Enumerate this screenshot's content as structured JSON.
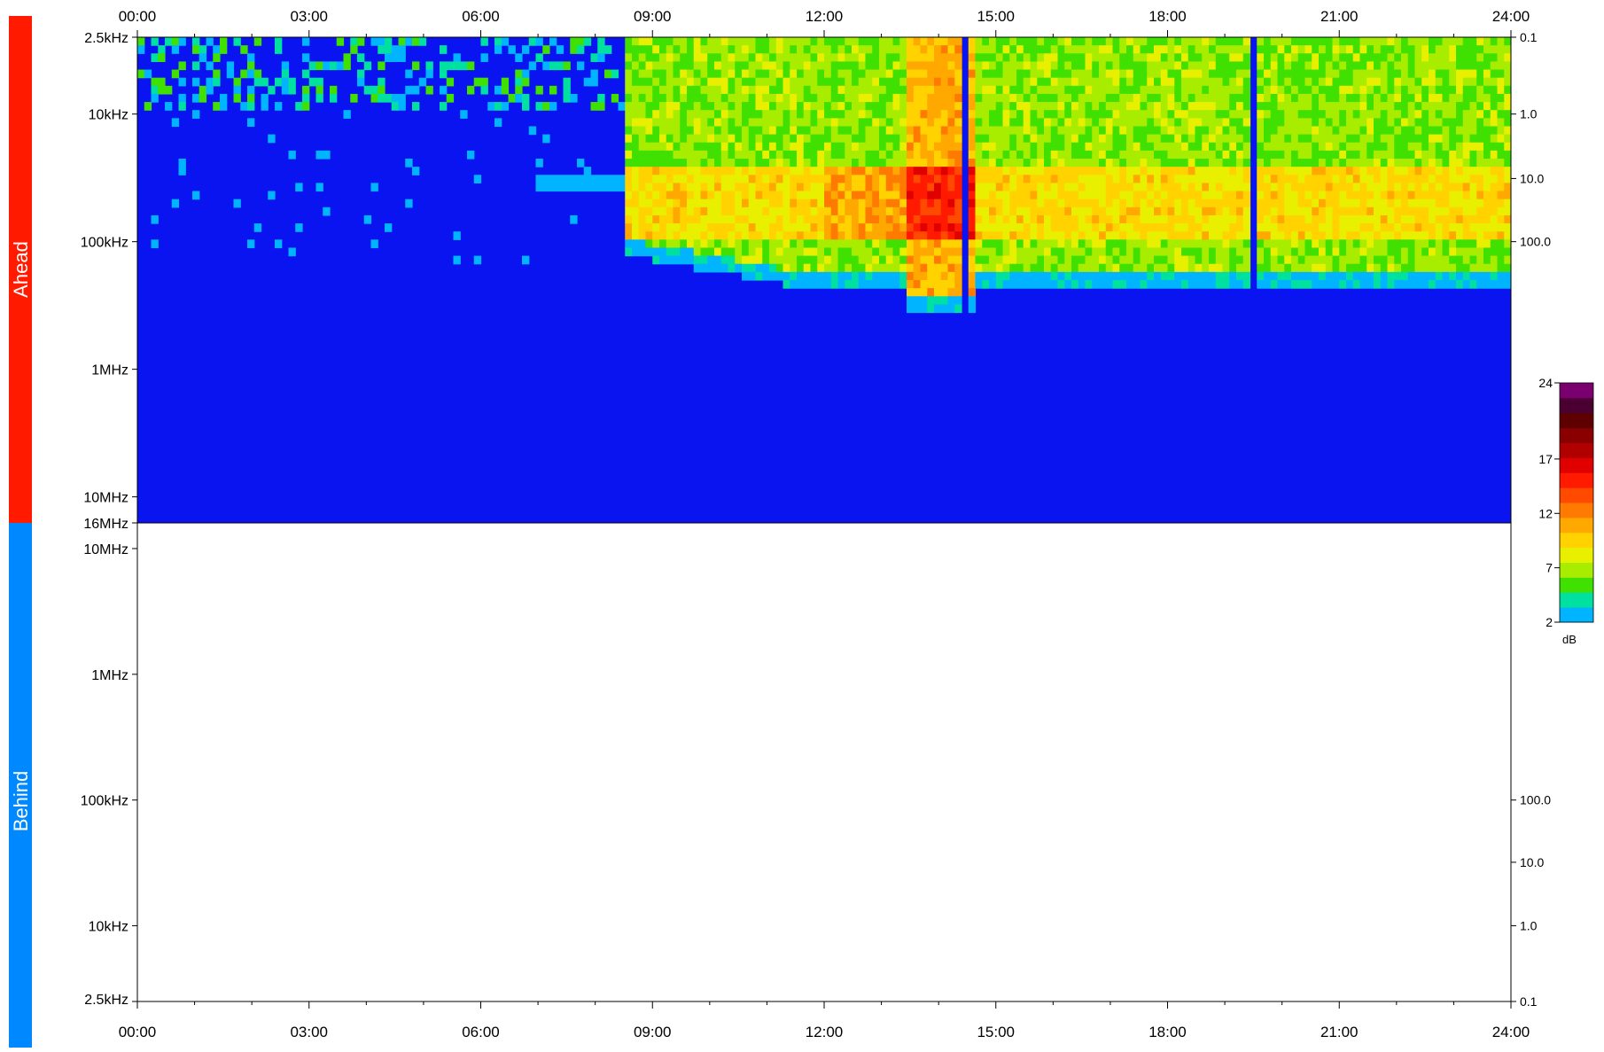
{
  "chart_data": {
    "type": "heatmap",
    "time_axis": {
      "ticks": [
        "00:00",
        "03:00",
        "06:00",
        "09:00",
        "12:00",
        "15:00",
        "18:00",
        "21:00",
        "24:00"
      ],
      "range_hours": [
        0,
        24
      ]
    },
    "panels": [
      {
        "name": "Ahead",
        "color": "#ff1a00",
        "y_scale": "log",
        "freq_range_hz": [
          2500,
          16000000
        ],
        "freq_ticks": [
          {
            "label": "2.5kHz",
            "hz": 2500
          },
          {
            "label": "10kHz",
            "hz": 10000
          },
          {
            "label": "100kHz",
            "hz": 100000
          },
          {
            "label": "1MHz",
            "hz": 1000000
          },
          {
            "label": "10MHz",
            "hz": 10000000
          },
          {
            "label": "16MHz",
            "hz": 16000000
          }
        ],
        "right_ticks": [
          {
            "label": "0.1",
            "hz": 2500
          },
          {
            "label": "1.0",
            "hz": 10000
          },
          {
            "label": "10.0",
            "hz": 32000
          },
          {
            "label": "100.0",
            "hz": 100000
          }
        ],
        "has_data": true
      },
      {
        "name": "Behind",
        "color": "#0088ff",
        "y_scale": "log",
        "freq_range_hz": [
          2500,
          16000000
        ],
        "freq_ticks": [
          {
            "label": "10MHz",
            "hz": 10000000
          },
          {
            "label": "1MHz",
            "hz": 1000000
          },
          {
            "label": "100kHz",
            "hz": 100000
          },
          {
            "label": "10kHz",
            "hz": 10000
          },
          {
            "label": "2.5kHz",
            "hz": 2500
          }
        ],
        "right_ticks": [
          {
            "label": "100.0",
            "hz": 100000
          },
          {
            "label": "10.0",
            "hz": 32000
          },
          {
            "label": "1.0",
            "hz": 10000
          },
          {
            "label": "0.1",
            "hz": 2500
          }
        ],
        "has_data": false
      }
    ],
    "colorbar": {
      "unit": "dB",
      "range": [
        2,
        24
      ],
      "ticks": [
        "24",
        "17",
        "12",
        "7",
        "2"
      ],
      "tick_values": [
        24,
        17,
        12,
        7,
        2
      ],
      "palette": [
        "#00b4ff",
        "#00e0a0",
        "#40e000",
        "#a8ec00",
        "#e8f000",
        "#ffd200",
        "#ffa800",
        "#ff7a00",
        "#ff4a00",
        "#ff1a00",
        "#e00000",
        "#b00000",
        "#8a0000",
        "#5e0000",
        "#4a0030",
        "#7a0070"
      ]
    },
    "spectrogram_features": {
      "background_color": "#0a14f0",
      "onset_hour": 8.5,
      "peak_hour": 14.0,
      "data_gaps_hours": [
        14.5,
        19.5
      ]
    }
  }
}
